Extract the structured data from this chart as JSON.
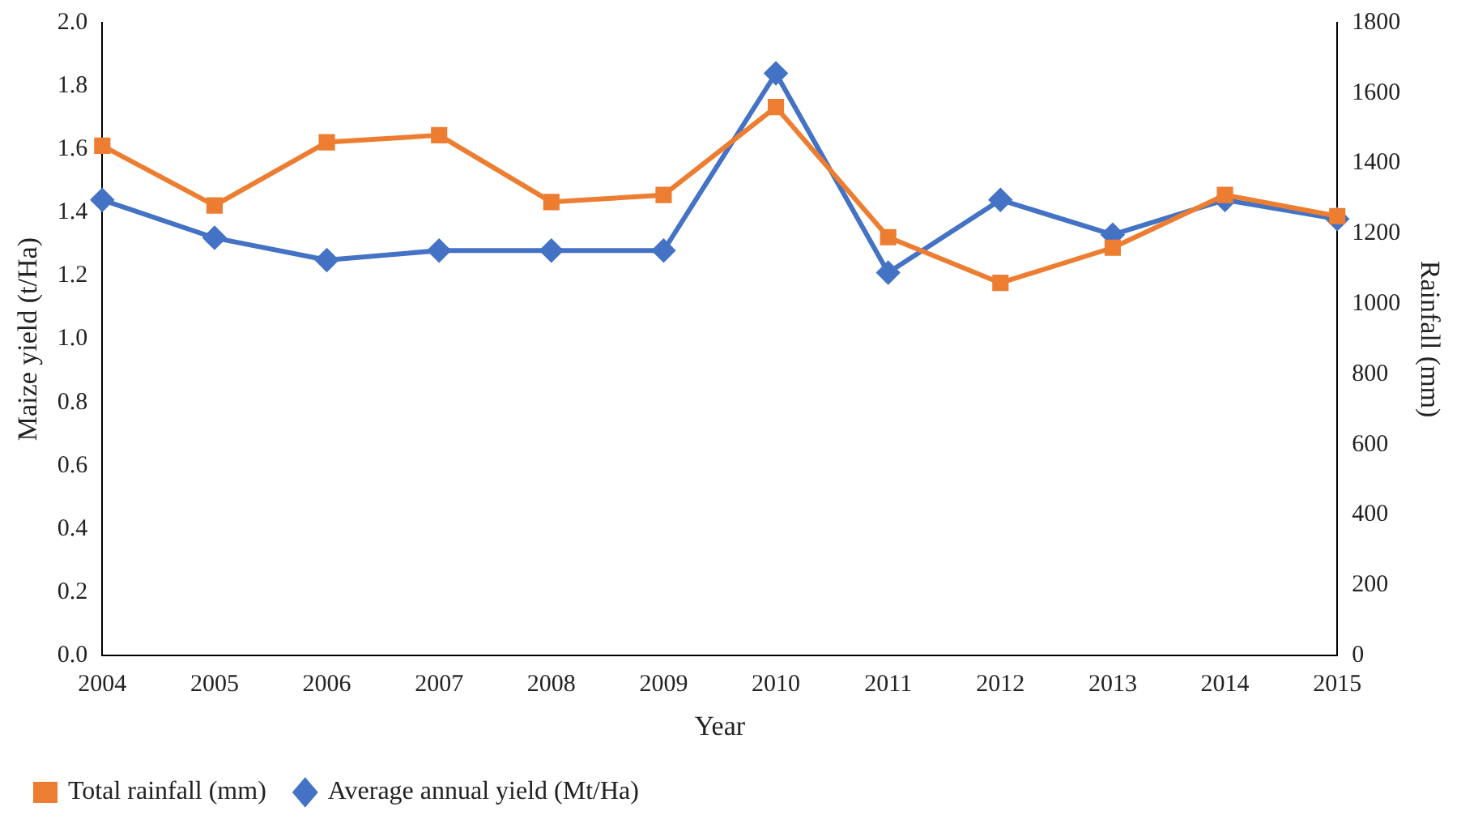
{
  "chart_data": {
    "type": "line",
    "xlabel": "Year",
    "ylabel": "Maize yield (t/Ha)",
    "y2label": "Rainfall (mm)",
    "categories": [
      "2004",
      "2005",
      "2006",
      "2007",
      "2008",
      "2009",
      "2010",
      "2011",
      "2012",
      "2013",
      "2014",
      "2015"
    ],
    "series": [
      {
        "name": "Average annual yield (Mt/Ha)",
        "color": "#4472c4",
        "marker": "diamond",
        "values": [
          1.44,
          1.32,
          1.25,
          1.28,
          1.28,
          1.28,
          1.84,
          1.21,
          1.44,
          1.33,
          1.44,
          1.38
        ]
      },
      {
        "name": "Total rainfall (mm)",
        "color": "#ed7d31",
        "marker": "square",
        "axis": "y2",
        "values": [
          1450,
          1280,
          1460,
          1480,
          1290,
          1310,
          1560,
          1190,
          1060,
          1160,
          1310,
          1250
        ]
      }
    ],
    "ylim": [
      0,
      2
    ],
    "yticks": [
      {
        "value": 0,
        "label": "0.0"
      },
      {
        "value": 0.2,
        "label": "0.2"
      },
      {
        "value": 0.4,
        "label": "0.4"
      },
      {
        "value": 0.6,
        "label": "0.6"
      },
      {
        "value": 0.8,
        "label": "0.8"
      },
      {
        "value": 1,
        "label": "1.0"
      },
      {
        "value": 1.2,
        "label": "1.2"
      },
      {
        "value": 1.4,
        "label": "1.4"
      },
      {
        "value": 1.6,
        "label": "1.6"
      },
      {
        "value": 1.8,
        "label": "1.8"
      },
      {
        "value": 2,
        "label": "2.0"
      }
    ],
    "y2lim": [
      0,
      1800
    ],
    "y2ticks": [
      0,
      200,
      400,
      600,
      800,
      1000,
      1200,
      1400,
      1600,
      1800
    ],
    "grid": false,
    "legend": "bottom left",
    "line_style": "solid"
  }
}
